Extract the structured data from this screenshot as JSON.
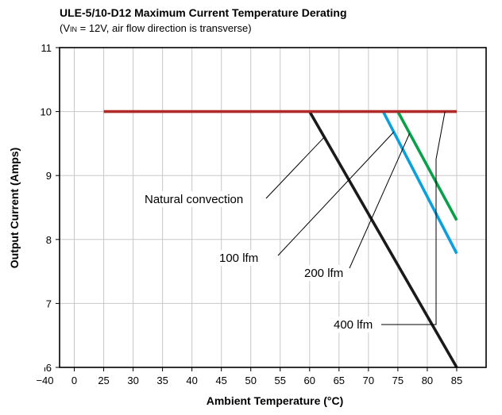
{
  "chart_data": {
    "type": "line",
    "title": "ULE-5/10-D12 Maximum Current Temperature Derating",
    "subtitle": "(VIN = 12V, air flow direction is transverse)",
    "xlabel": "Ambient Temperature (°C)",
    "ylabel": "Output Current (Amps)",
    "x_tick_labels": [
      "−40",
      "0",
      "25",
      "30",
      "35",
      "40",
      "45",
      "50",
      "55",
      "60",
      "65",
      "70",
      "75",
      "80",
      "85"
    ],
    "y_ticks": [
      6,
      7,
      8,
      9,
      10,
      11
    ],
    "ylim": [
      6,
      11
    ],
    "grid": true,
    "series": [
      {
        "name": "Natural convection",
        "color": "#1a1a1a",
        "x": [
          60,
          85
        ],
        "y": [
          10,
          6
        ]
      },
      {
        "name": "100 lfm",
        "color": "#0aa0dc",
        "x": [
          72.5,
          85
        ],
        "y": [
          10,
          7.78
        ]
      },
      {
        "name": "200 lfm",
        "color": "#0aa04a",
        "x": [
          75,
          85
        ],
        "y": [
          10,
          8.3
        ]
      },
      {
        "name": "400 lfm",
        "color": "#b02a2a",
        "x": [
          25,
          85
        ],
        "y": [
          10,
          10
        ]
      }
    ],
    "annotations": [
      {
        "text": "Natural convection",
        "series": 0,
        "at_x": 62.5
      },
      {
        "text": "100 lfm",
        "series": 1,
        "at_x": 74.3
      },
      {
        "text": "200 lfm",
        "series": 2,
        "at_x": 77.0
      },
      {
        "text": "400 lfm",
        "series": 3,
        "at_x": 83.0
      }
    ]
  }
}
